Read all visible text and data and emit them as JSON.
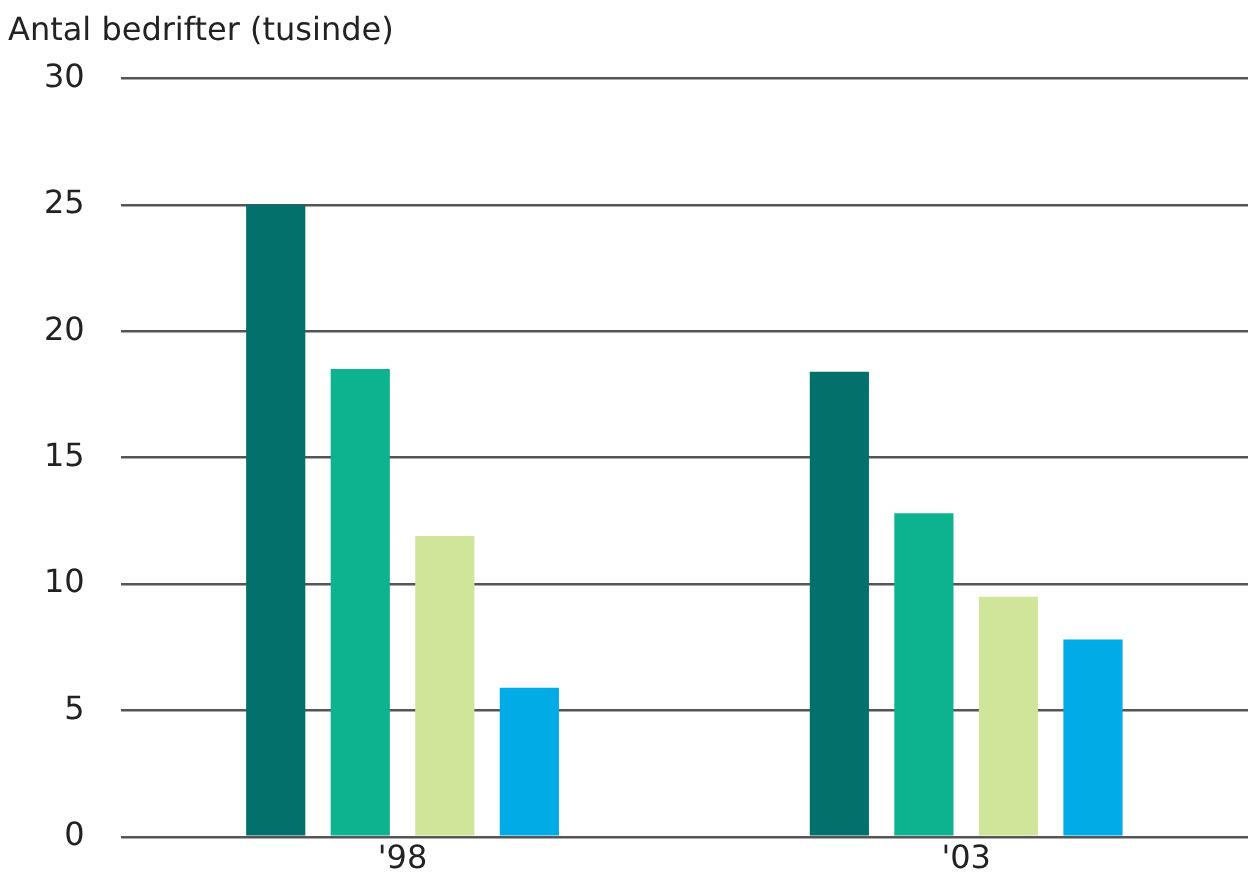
{
  "chart_data": {
    "type": "bar",
    "ylabel": "Antal bedrifter (tusinde)",
    "categories": [
      "'98",
      "'03"
    ],
    "series": [
      {
        "color": "#03706c",
        "values": [
          25,
          18.4
        ]
      },
      {
        "color": "#0db28f",
        "values": [
          18.5,
          12.8
        ]
      },
      {
        "color": "#d0e49a",
        "values": [
          11.9,
          9.5
        ]
      },
      {
        "color": "#00abe6",
        "values": [
          5.9,
          7.8
        ]
      }
    ],
    "ylim": [
      0,
      30
    ],
    "yticks": [
      0,
      5,
      10,
      15,
      20,
      25,
      30
    ],
    "grid": "y"
  }
}
